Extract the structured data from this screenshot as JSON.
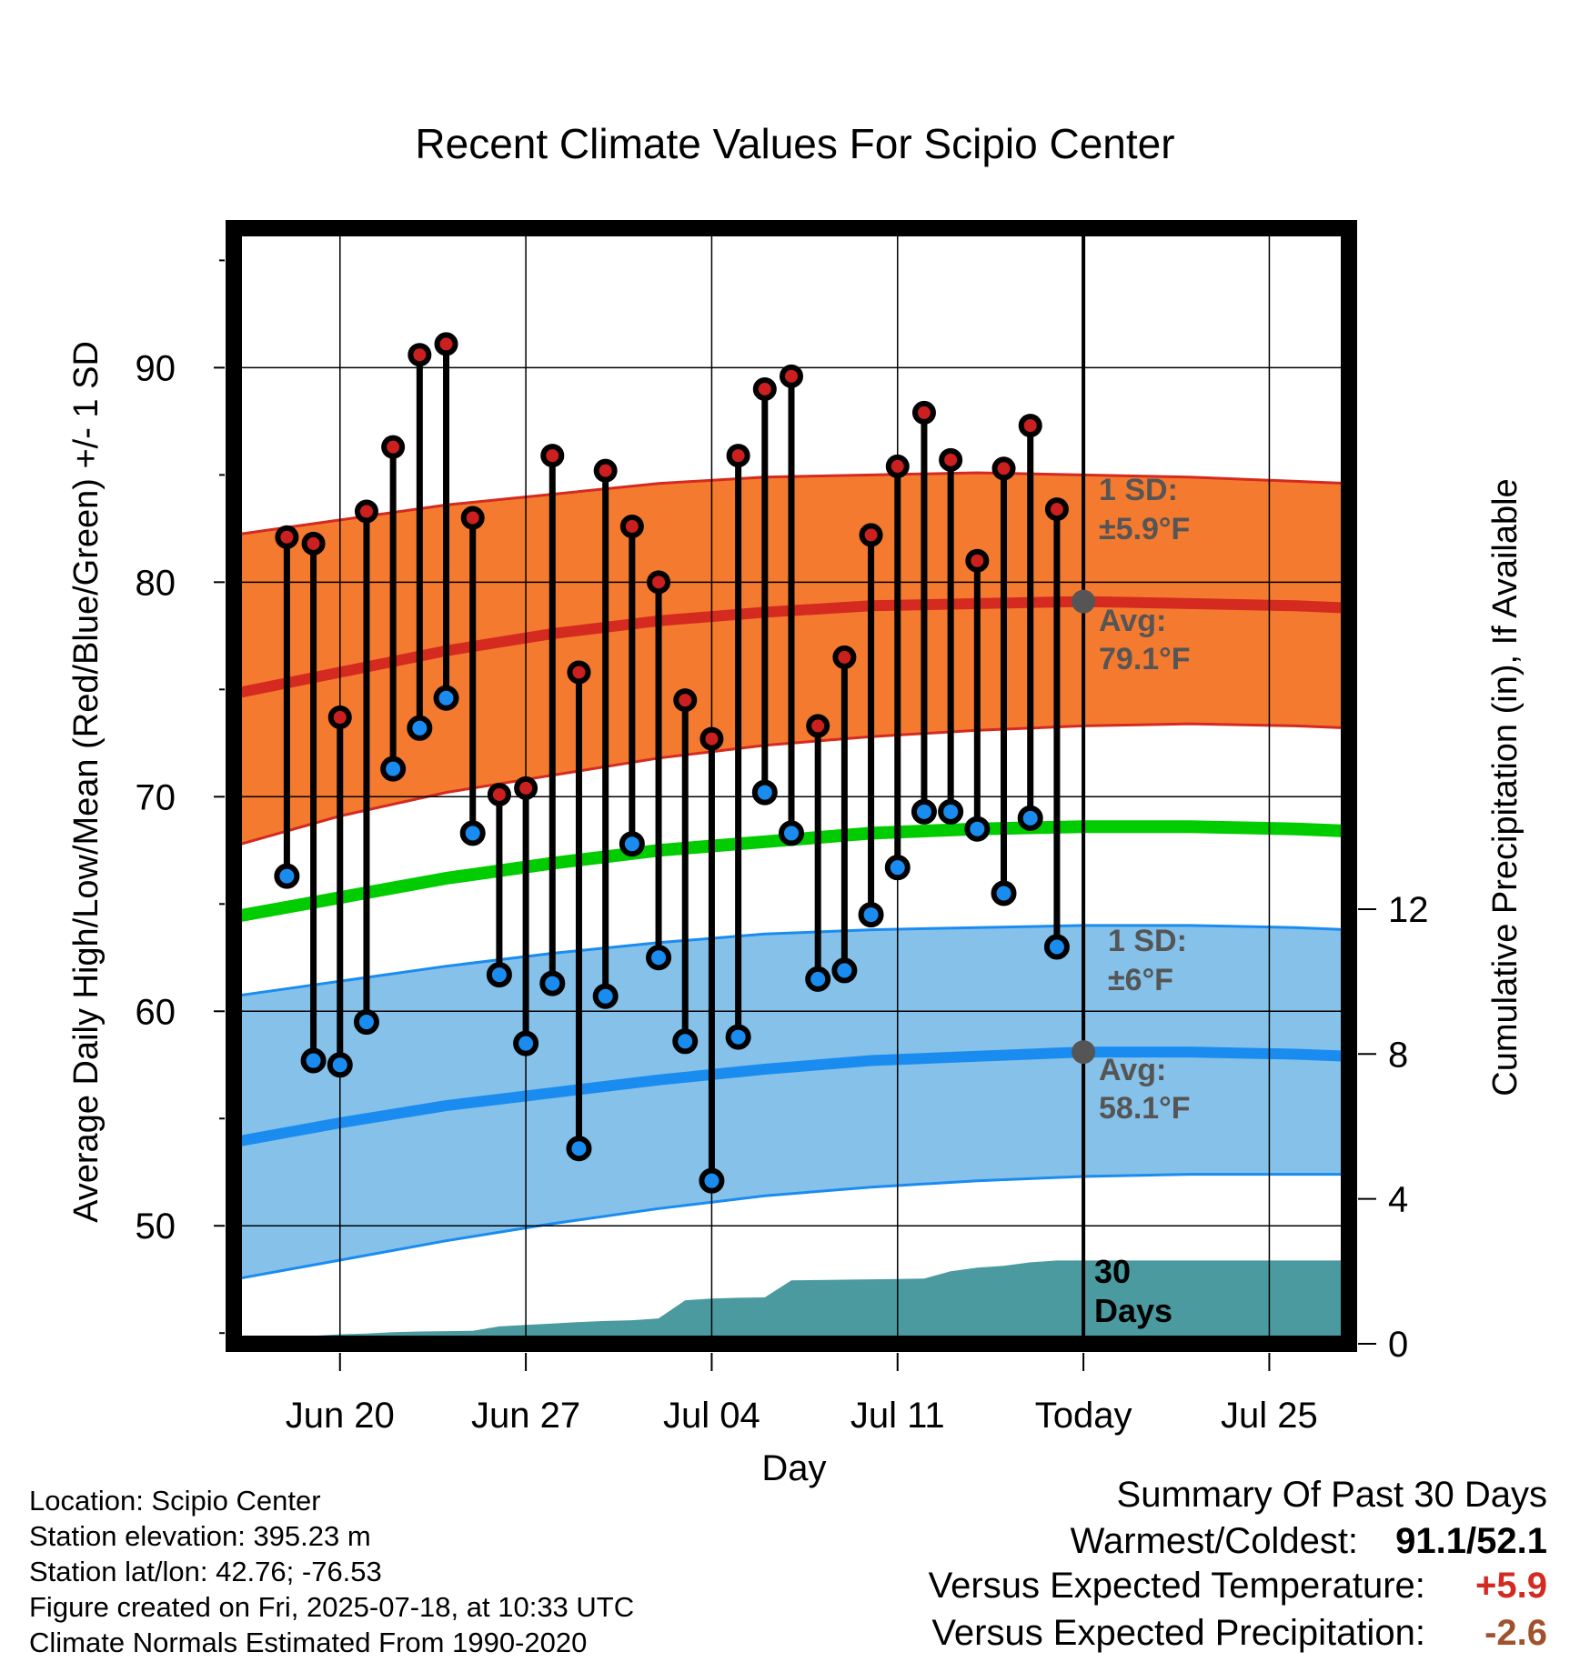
{
  "chart_data": {
    "type": "line",
    "title": "Recent Climate Values For Scipio Center",
    "xlabel": "Day",
    "ylabel_left": "Average Daily High/Low/Mean (Red/Blue/Green) +/- 1 SD",
    "ylabel_right": "Cumulative Precipitation (in), If Available",
    "x_range": [
      "2025-06-16",
      "2025-07-28"
    ],
    "ylim_left": [
      44.5,
      96.5
    ],
    "ylim_right": [
      0,
      30.8
    ],
    "x_ticks": [
      {
        "date": "2025-06-20",
        "label": "Jun 20"
      },
      {
        "date": "2025-06-27",
        "label": "Jun 27"
      },
      {
        "date": "2025-07-04",
        "label": "Jul 04"
      },
      {
        "date": "2025-07-11",
        "label": "Jul 11"
      },
      {
        "date": "2025-07-18",
        "label": "Today"
      },
      {
        "date": "2025-07-25",
        "label": "Jul 25"
      }
    ],
    "y_ticks_left": [
      50,
      60,
      70,
      80,
      90
    ],
    "y_ticks_right": [
      0,
      4,
      8,
      12
    ],
    "grid": true,
    "today": "2025-07-18",
    "colors": {
      "high_band": "#f47a2f",
      "high_mean": "#d42a20",
      "low_band": "#85c1e8",
      "low_mean": "#1a8cf0",
      "daily_mean": "#00cc00",
      "precip": "#4a9aa0",
      "high_marker": "#cc1f1f",
      "low_marker": "#1a8cf0",
      "today_marker": "#555555",
      "summary_warm": "#d42a20",
      "summary_precip": "#a0522d",
      "annotation": "#555555"
    },
    "normals": {
      "dates": [
        "2025-06-16",
        "2025-06-20",
        "2025-06-24",
        "2025-06-28",
        "2025-07-02",
        "2025-07-06",
        "2025-07-10",
        "2025-07-14",
        "2025-07-18",
        "2025-07-22",
        "2025-07-26",
        "2025-07-28"
      ],
      "high_avg": [
        74.8,
        75.8,
        76.8,
        77.6,
        78.2,
        78.6,
        78.9,
        79.0,
        79.1,
        79.0,
        78.9,
        78.8
      ],
      "high_upper": [
        82.2,
        82.9,
        83.6,
        84.1,
        84.6,
        84.9,
        85.0,
        85.1,
        85.0,
        84.9,
        84.7,
        84.6
      ],
      "high_lower": [
        67.7,
        69.1,
        70.2,
        71.0,
        71.8,
        72.4,
        72.8,
        73.1,
        73.3,
        73.4,
        73.3,
        73.2
      ],
      "low_avg": [
        53.9,
        54.8,
        55.6,
        56.2,
        56.8,
        57.3,
        57.7,
        57.9,
        58.1,
        58.1,
        58.0,
        57.9
      ],
      "low_upper": [
        60.7,
        61.4,
        62.1,
        62.7,
        63.2,
        63.6,
        63.8,
        63.9,
        64.0,
        64.0,
        63.9,
        63.8
      ],
      "low_lower": [
        47.5,
        48.4,
        49.3,
        50.1,
        50.8,
        51.4,
        51.8,
        52.1,
        52.3,
        52.4,
        52.4,
        52.4
      ],
      "mean_avg": [
        64.4,
        65.3,
        66.2,
        66.9,
        67.5,
        67.9,
        68.3,
        68.5,
        68.6,
        68.6,
        68.5,
        68.4
      ]
    },
    "series": [
      {
        "name": "High",
        "dates": [
          "2025-06-18",
          "2025-06-19",
          "2025-06-20",
          "2025-06-21",
          "2025-06-22",
          "2025-06-23",
          "2025-06-24",
          "2025-06-25",
          "2025-06-26",
          "2025-06-27",
          "2025-06-28",
          "2025-06-29",
          "2025-06-30",
          "2025-07-01",
          "2025-07-02",
          "2025-07-03",
          "2025-07-04",
          "2025-07-05",
          "2025-07-06",
          "2025-07-07",
          "2025-07-08",
          "2025-07-09",
          "2025-07-10",
          "2025-07-11",
          "2025-07-12",
          "2025-07-13",
          "2025-07-14",
          "2025-07-15",
          "2025-07-16",
          "2025-07-17"
        ],
        "values": [
          82.1,
          81.8,
          73.7,
          83.3,
          86.3,
          90.6,
          91.1,
          83.0,
          70.1,
          70.4,
          85.9,
          75.8,
          85.2,
          82.6,
          80.0,
          74.5,
          72.7,
          85.9,
          89.0,
          89.6,
          73.3,
          76.5,
          82.2,
          85.4,
          87.9,
          85.7,
          81.0,
          85.3,
          87.3,
          83.4
        ]
      },
      {
        "name": "Low",
        "dates": [
          "2025-06-18",
          "2025-06-19",
          "2025-06-20",
          "2025-06-21",
          "2025-06-22",
          "2025-06-23",
          "2025-06-24",
          "2025-06-25",
          "2025-06-26",
          "2025-06-27",
          "2025-06-28",
          "2025-06-29",
          "2025-06-30",
          "2025-07-01",
          "2025-07-02",
          "2025-07-03",
          "2025-07-04",
          "2025-07-05",
          "2025-07-06",
          "2025-07-07",
          "2025-07-08",
          "2025-07-09",
          "2025-07-10",
          "2025-07-11",
          "2025-07-12",
          "2025-07-13",
          "2025-07-14",
          "2025-07-15",
          "2025-07-16",
          "2025-07-17"
        ],
        "values": [
          66.3,
          57.7,
          57.5,
          59.5,
          71.3,
          73.2,
          74.6,
          68.3,
          61.7,
          58.5,
          61.3,
          53.6,
          60.7,
          67.8,
          62.5,
          58.6,
          52.1,
          58.8,
          70.2,
          68.3,
          61.5,
          61.9,
          64.5,
          66.7,
          69.3,
          69.3,
          68.5,
          65.5,
          69.0,
          63.0
        ]
      },
      {
        "name": "Cumulative Precipitation",
        "dates": [
          "2025-06-16",
          "2025-06-18",
          "2025-06-19",
          "2025-06-20",
          "2025-06-21",
          "2025-06-22",
          "2025-06-23",
          "2025-06-24",
          "2025-06-25",
          "2025-06-26",
          "2025-06-27",
          "2025-06-28",
          "2025-06-29",
          "2025-06-30",
          "2025-07-01",
          "2025-07-02",
          "2025-07-03",
          "2025-07-04",
          "2025-07-05",
          "2025-07-06",
          "2025-07-07",
          "2025-07-08",
          "2025-07-09",
          "2025-07-10",
          "2025-07-11",
          "2025-07-12",
          "2025-07-13",
          "2025-07-14",
          "2025-07-15",
          "2025-07-16",
          "2025-07-17",
          "2025-07-28"
        ],
        "values": [
          0,
          0,
          0.22,
          0.26,
          0.28,
          0.32,
          0.34,
          0.35,
          0.36,
          0.48,
          0.52,
          0.56,
          0.6,
          0.63,
          0.65,
          0.7,
          1.2,
          1.25,
          1.27,
          1.28,
          1.75,
          1.76,
          1.77,
          1.78,
          1.79,
          1.8,
          2.0,
          2.1,
          2.15,
          2.25,
          2.3,
          2.3
        ]
      }
    ],
    "annotations": {
      "high_sd_title": "1 SD:",
      "high_sd_value": "±5.9°F",
      "high_avg_title": "Avg:",
      "high_avg_value": "79.1°F",
      "low_sd_title": "1 SD:",
      "low_sd_value": "±6°F",
      "low_avg_title": "Avg:",
      "low_avg_value": "58.1°F",
      "days_count": "30",
      "days_label": "Days"
    }
  },
  "footer": {
    "location": "Location: Scipio Center",
    "elevation": "Station elevation: 395.23 m",
    "latlon": "Station lat/lon: 42.76; -76.53",
    "created": "Figure created on Fri, 2025-07-18, at 10:33 UTC",
    "normals": "Climate Normals Estimated From 1990-2020"
  },
  "summary": {
    "title": "Summary Of Past 30 Days",
    "warmest_label": "Warmest/Coldest:",
    "warmest_value": "91.1/52.1",
    "temp_label": "Versus Expected Temperature:",
    "temp_value": "+5.9",
    "precip_label": "Versus Expected Precipitation:",
    "precip_value": "-2.6"
  }
}
